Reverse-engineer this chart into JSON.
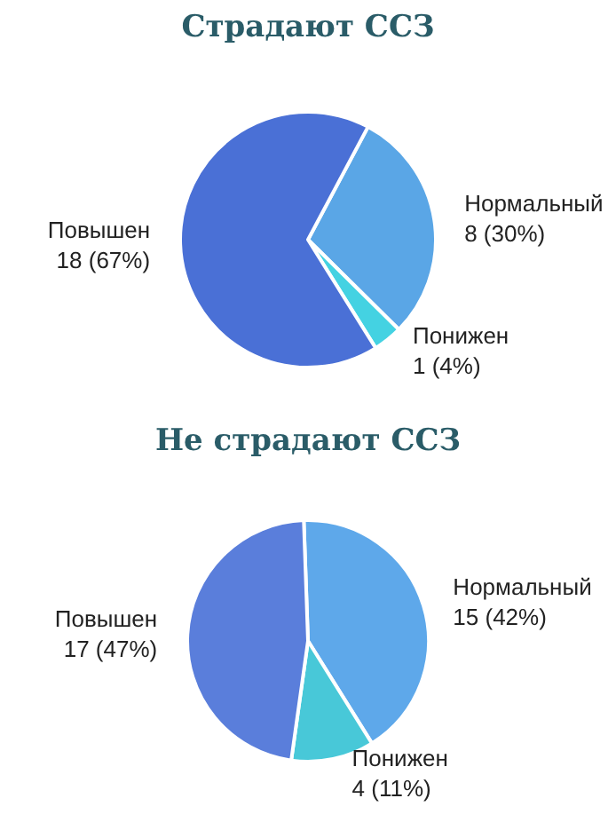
{
  "chart_data": [
    {
      "type": "pie",
      "title": "Страдают ССЗ",
      "categories": [
        "Нормальный",
        "Понижен",
        "Повышен"
      ],
      "values": [
        8,
        1,
        18
      ],
      "value_labels": [
        "8 (30%)",
        "1 (4%)",
        "18 (67%)"
      ],
      "colors": [
        "#5aa6e6",
        "#44d2e2",
        "#4a70d6"
      ]
    },
    {
      "type": "pie",
      "title": "Не страдают ССЗ",
      "categories": [
        "Нормальный",
        "Понижен",
        "Повышен"
      ],
      "values": [
        15,
        4,
        17
      ],
      "value_labels": [
        "15 (42%)",
        "4 (11%)",
        "17 (47%)"
      ],
      "colors": [
        "#5ea8ea",
        "#48c8d8",
        "#5a7edb"
      ]
    }
  ]
}
